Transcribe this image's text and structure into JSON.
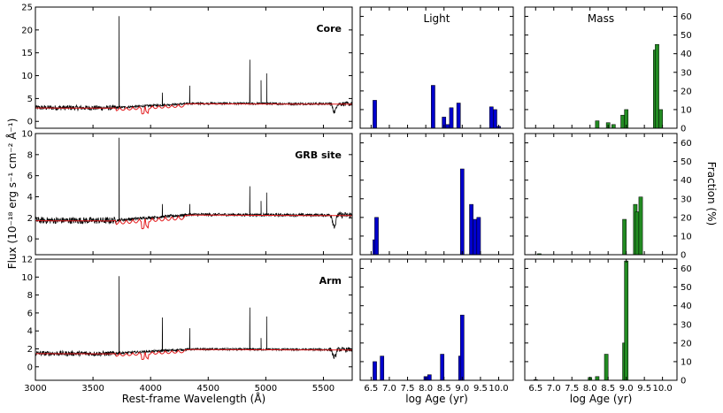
{
  "chart_data": [
    {
      "type": "line",
      "panel": "spectra",
      "rows": [
        {
          "label": "Core",
          "ylim": [
            -1.5,
            25
          ],
          "yticks": [
            0,
            5,
            10,
            15,
            20,
            25
          ],
          "continuum": 3.4,
          "lines": [
            [
              3727,
              23
            ],
            [
              4102,
              6.3
            ],
            [
              4340,
              7.8
            ],
            [
              4861,
              13.5
            ],
            [
              4959,
              9
            ],
            [
              5007,
              10.5
            ]
          ]
        },
        {
          "label": "GRB site",
          "ylim": [
            -1.5,
            10
          ],
          "yticks": [
            0,
            2,
            4,
            6,
            8,
            10
          ],
          "continuum": 2.0,
          "lines": [
            [
              3727,
              9.6
            ],
            [
              4102,
              3.3
            ],
            [
              4340,
              3.3
            ],
            [
              4861,
              5.0
            ],
            [
              4959,
              3.6
            ],
            [
              5007,
              4.4
            ]
          ]
        },
        {
          "label": "Arm",
          "ylim": [
            -1.5,
            12
          ],
          "yticks": [
            0,
            2,
            4,
            6,
            8,
            10,
            12
          ],
          "continuum": 1.7,
          "lines": [
            [
              3727,
              10.1
            ],
            [
              4102,
              5.5
            ],
            [
              4340,
              4.3
            ],
            [
              4861,
              6.6
            ],
            [
              4959,
              3.2
            ],
            [
              5007,
              5.6
            ]
          ]
        }
      ],
      "xlim": [
        3000,
        5750
      ],
      "xticks": [
        3000,
        3500,
        4000,
        4500,
        5000,
        5500
      ],
      "xlabel": "Rest-frame Wavelength (Å)",
      "ylabel": "Flux (10⁻¹⁸ erg s⁻¹ cm⁻² Å⁻¹)",
      "colors": {
        "observed": "#000000",
        "model": "#e31a1c"
      }
    },
    {
      "type": "bar",
      "panel": "Light",
      "title": "Light",
      "xlabel": "log Age (yr)",
      "xlim": [
        6.2,
        10.4
      ],
      "xticks": [
        "6.5",
        "7.0",
        "7.5",
        "8.0",
        "8.5",
        "9.0",
        "9.5",
        "10.0"
      ],
      "color": "#0000cd",
      "rows": [
        {
          "label": "Core",
          "ylim": [
            0,
            65
          ],
          "bars": [
            [
              6.6,
              15
            ],
            [
              8.2,
              23
            ],
            [
              8.5,
              6
            ],
            [
              8.6,
              2
            ],
            [
              8.7,
              11
            ],
            [
              8.9,
              13.5
            ],
            [
              9.8,
              11.5
            ],
            [
              9.9,
              10
            ],
            [
              10.0,
              1
            ]
          ]
        },
        {
          "label": "GRB site",
          "ylim": [
            0,
            65
          ],
          "bars": [
            [
              6.6,
              8
            ],
            [
              6.65,
              20
            ],
            [
              9.0,
              46
            ],
            [
              9.25,
              27
            ],
            [
              9.35,
              19
            ],
            [
              9.45,
              20
            ]
          ]
        },
        {
          "label": "Arm",
          "ylim": [
            0,
            65
          ],
          "bars": [
            [
              6.6,
              10
            ],
            [
              6.8,
              13
            ],
            [
              8.0,
              2
            ],
            [
              8.1,
              3
            ],
            [
              8.45,
              14
            ],
            [
              8.95,
              13
            ],
            [
              9.0,
              35
            ]
          ]
        }
      ]
    },
    {
      "type": "bar",
      "panel": "Mass",
      "title": "Mass",
      "xlabel": "log Age (yr)",
      "ylabel": "Fraction (%)",
      "xlim": [
        6.2,
        10.4
      ],
      "xticks": [
        "6.5",
        "7.0",
        "7.5",
        "8.0",
        "8.5",
        "9.0",
        "9.5",
        "10.0"
      ],
      "yticks": [
        0,
        10,
        20,
        30,
        40,
        50,
        60
      ],
      "color": "#228b22",
      "rows": [
        {
          "label": "Core",
          "ylim": [
            0,
            65
          ],
          "bars": [
            [
              8.2,
              4
            ],
            [
              8.5,
              3
            ],
            [
              8.65,
              2
            ],
            [
              8.9,
              7
            ],
            [
              9.0,
              10
            ],
            [
              9.8,
              42
            ],
            [
              9.85,
              45
            ],
            [
              9.95,
              10
            ]
          ]
        },
        {
          "label": "GRB site",
          "ylim": [
            0,
            65
          ],
          "bars": [
            [
              6.6,
              0.5
            ],
            [
              8.95,
              19
            ],
            [
              9.25,
              27
            ],
            [
              9.3,
              23
            ],
            [
              9.4,
              31
            ]
          ]
        },
        {
          "label": "Arm",
          "ylim": [
            0,
            65
          ],
          "bars": [
            [
              6.5,
              0.4
            ],
            [
              8.0,
              1.5
            ],
            [
              8.2,
              2
            ],
            [
              8.45,
              14
            ],
            [
              8.95,
              20
            ],
            [
              9.0,
              64
            ]
          ]
        }
      ]
    }
  ]
}
